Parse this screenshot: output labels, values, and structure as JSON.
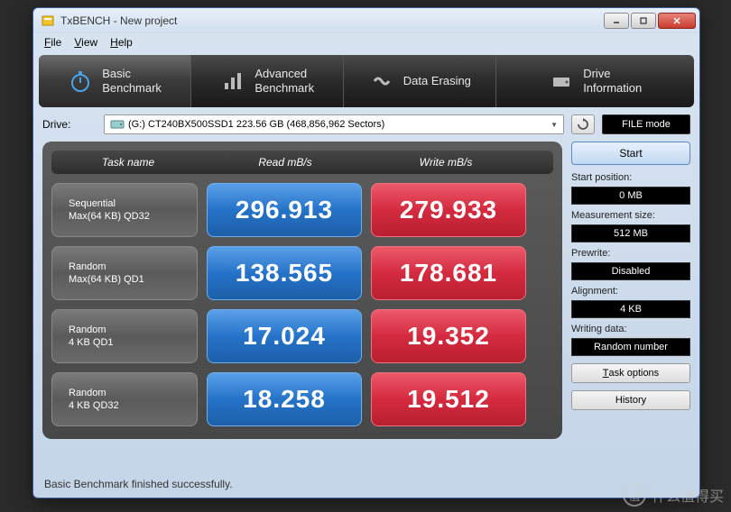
{
  "window": {
    "title": "TxBENCH - New project",
    "title_color": "#333333"
  },
  "menu": {
    "file": "File",
    "view": "View",
    "help": "Help"
  },
  "tabs": {
    "basic": {
      "line1": "Basic",
      "line2": "Benchmark"
    },
    "advanced": {
      "line1": "Advanced",
      "line2": "Benchmark"
    },
    "erasing": {
      "label": "Data Erasing"
    },
    "drive": {
      "line1": "Drive",
      "line2": "Information"
    }
  },
  "drive": {
    "label": "Drive:",
    "selected": "(G:) CT240BX500SSD1  223.56 GB (468,856,962 Sectors)",
    "filemode": "FILE mode"
  },
  "headers": {
    "task": "Task name",
    "read": "Read mB/s",
    "write": "Write mB/s"
  },
  "rows": [
    {
      "task1": "Sequential",
      "task2": "Max(64 KB) QD32",
      "read": "296.913",
      "write": "279.933"
    },
    {
      "task1": "Random",
      "task2": "Max(64 KB) QD1",
      "read": "138.565",
      "write": "178.681"
    },
    {
      "task1": "Random",
      "task2": "4 KB QD1",
      "read": "17.024",
      "write": "19.352"
    },
    {
      "task1": "Random",
      "task2": "4 KB QD32",
      "read": "18.258",
      "write": "19.512"
    }
  ],
  "side": {
    "start": "Start",
    "startpos_label": "Start position:",
    "startpos_value": "0 MB",
    "meassize_label": "Measurement size:",
    "meassize_value": "512 MB",
    "prewrite_label": "Prewrite:",
    "prewrite_value": "Disabled",
    "alignment_label": "Alignment:",
    "alignment_value": "4 KB",
    "writingdata_label": "Writing data:",
    "writingdata_value": "Random number",
    "taskoptions": "Task options",
    "history": "History"
  },
  "status": "Basic Benchmark finished successfully.",
  "colors": {
    "read_bg": "#2573c9",
    "write_bg": "#d42a3f",
    "panel_bg": "#505050",
    "window_bg": "#d0dff0"
  },
  "watermark": {
    "char": "值",
    "text": "什么值得买"
  }
}
